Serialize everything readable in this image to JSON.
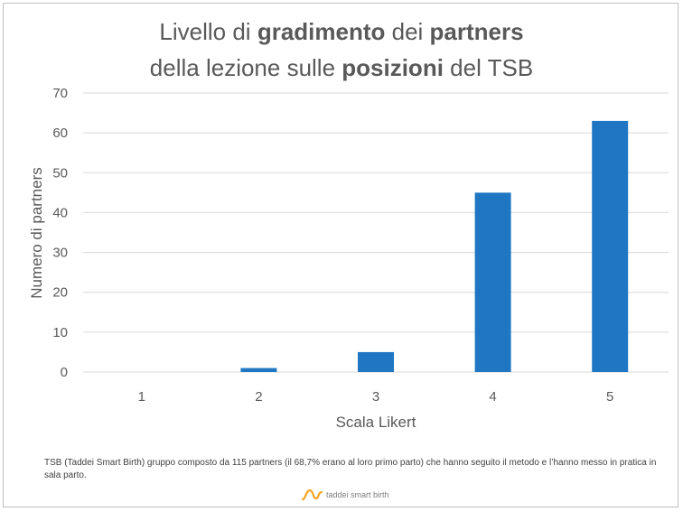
{
  "title": {
    "line1": [
      {
        "text": "Livello di ",
        "bold": false
      },
      {
        "text": "gradimento",
        "bold": true
      },
      {
        "text": " dei ",
        "bold": false
      },
      {
        "text": "partners",
        "bold": true
      }
    ],
    "line2": [
      {
        "text": "della lezione sulle ",
        "bold": false
      },
      {
        "text": "posizioni",
        "bold": true
      },
      {
        "text": " del TSB",
        "bold": false
      }
    ]
  },
  "chart_data": {
    "type": "bar",
    "title": "Livello di gradimento dei partners della lezione sulle posizioni del TSB",
    "categories": [
      "1",
      "2",
      "3",
      "4",
      "5"
    ],
    "values": [
      0,
      1,
      5,
      45,
      63
    ],
    "xlabel": "Scala Likert",
    "ylabel": "Numero di partners",
    "ylim": [
      0,
      70
    ],
    "yticks": [
      0,
      10,
      20,
      30,
      40,
      50,
      60,
      70
    ],
    "grid": true,
    "legend": "none",
    "bar_color": "#1f77c4"
  },
  "note": "TSB (Taddei Smart Birth) gruppo composto da 115 partners (il 68,7% erano al loro primo parto) che hanno seguito il metodo e l’hanno messo in pratica in sala parto.",
  "logo": {
    "text": "taddei smart birth",
    "color": "#f5a623",
    "icon": "logo-wave-icon"
  },
  "colors": {
    "text": "#595959",
    "grid": "#d9d9d9",
    "border": "#bfbfbf"
  }
}
